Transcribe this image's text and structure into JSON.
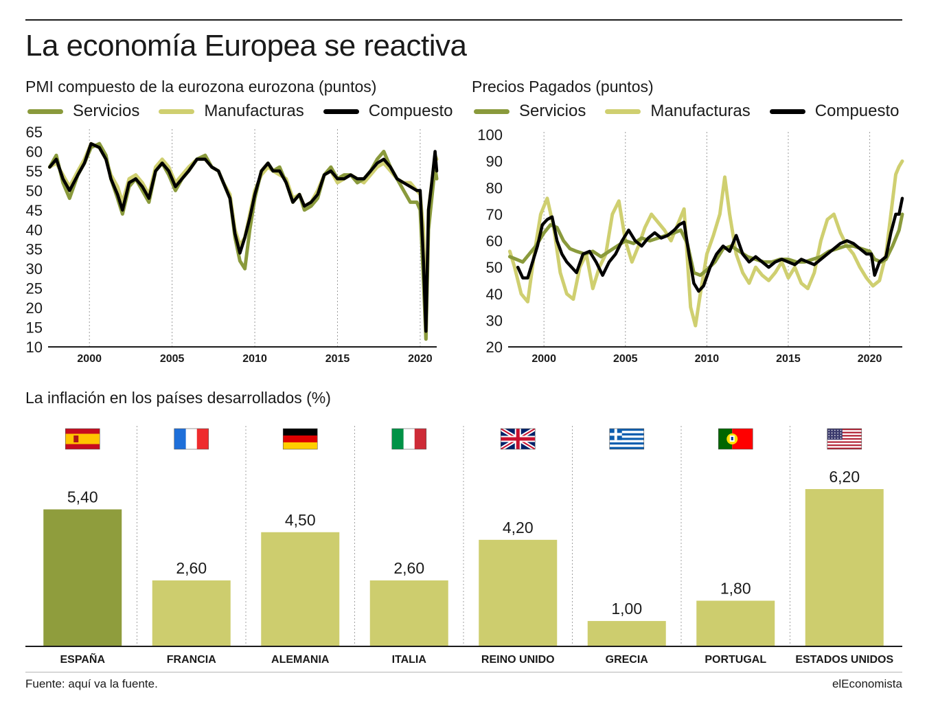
{
  "page": {
    "title": "La economía Europea se reactiva",
    "source": "Fuente: aquí va la fuente.",
    "brand": "elEconomista"
  },
  "colors": {
    "servicios": "#8a9a3c",
    "manufacturas": "#cfcf70",
    "compuesto": "#000000",
    "spain_bar": "#8f9d3d",
    "other_bar": "#cdcd6e"
  },
  "legend": {
    "servicios": "Servicios",
    "manufacturas": "Manufacturas",
    "compuesto": "Compuesto"
  },
  "chart_data": [
    {
      "type": "line",
      "title": "PMI compuesto de la eurozona eurozona (puntos)",
      "xlim": [
        1997.5,
        2021.0
      ],
      "ylim": [
        10,
        65
      ],
      "x_ticks": [
        2000,
        2005,
        2010,
        2015,
        2020
      ],
      "y_ticks": [
        10,
        15,
        20,
        25,
        30,
        35,
        40,
        45,
        50,
        55,
        60,
        65
      ],
      "grid": "vertical",
      "legend_position": "top-left",
      "series": [
        {
          "name": "Servicios",
          "color": "#8a9a3c",
          "x": [
            1997.6,
            1998.0,
            1998.4,
            1998.8,
            1999.3,
            1999.7,
            2000.1,
            2000.6,
            2001.0,
            2001.3,
            2001.7,
            2002.0,
            2002.4,
            2002.8,
            2003.2,
            2003.6,
            2004.0,
            2004.4,
            2004.8,
            2005.2,
            2005.6,
            2006.0,
            2006.5,
            2007.0,
            2007.4,
            2007.8,
            2008.1,
            2008.5,
            2008.8,
            2009.1,
            2009.4,
            2009.7,
            2010.0,
            2010.4,
            2010.8,
            2011.1,
            2011.5,
            2011.9,
            2012.3,
            2012.7,
            2013.0,
            2013.4,
            2013.8,
            2014.2,
            2014.6,
            2015.0,
            2015.4,
            2015.8,
            2016.2,
            2016.6,
            2017.0,
            2017.4,
            2017.8,
            2018.2,
            2018.6,
            2019.0,
            2019.4,
            2019.8,
            2020.0,
            2020.2,
            2020.35,
            2020.5,
            2020.7,
            2020.9,
            2021.0
          ],
          "y": [
            56,
            59,
            52,
            48,
            54,
            57,
            61,
            62,
            59,
            53,
            48,
            44,
            51,
            53,
            50,
            47,
            55,
            57,
            54,
            50,
            53,
            55,
            58,
            59,
            56,
            55,
            52,
            48,
            38,
            32,
            30,
            40,
            48,
            55,
            57,
            55,
            56,
            52,
            47,
            49,
            45,
            46,
            48,
            54,
            56,
            53,
            54,
            54,
            52,
            53,
            55,
            58,
            60,
            56,
            53,
            50,
            47,
            47,
            45,
            27,
            12,
            40,
            48,
            56,
            53
          ]
        },
        {
          "name": "Manufacturas",
          "color": "#cfcf70",
          "x": [
            1997.6,
            1998.0,
            1998.4,
            1998.8,
            1999.3,
            1999.7,
            2000.1,
            2000.6,
            2001.0,
            2001.3,
            2001.7,
            2002.0,
            2002.4,
            2002.8,
            2003.2,
            2003.6,
            2004.0,
            2004.4,
            2004.8,
            2005.2,
            2005.6,
            2006.0,
            2006.5,
            2007.0,
            2007.4,
            2007.8,
            2008.1,
            2008.5,
            2008.8,
            2009.1,
            2009.4,
            2009.7,
            2010.0,
            2010.4,
            2010.8,
            2011.1,
            2011.5,
            2011.9,
            2012.3,
            2012.7,
            2013.0,
            2013.4,
            2013.8,
            2014.2,
            2014.6,
            2015.0,
            2015.4,
            2015.8,
            2016.2,
            2016.6,
            2017.0,
            2017.4,
            2017.8,
            2018.2,
            2018.6,
            2019.0,
            2019.4,
            2019.8,
            2020.0,
            2020.2,
            2020.35,
            2020.5,
            2020.7,
            2020.9,
            2021.0
          ],
          "y": [
            56,
            57,
            54,
            51,
            55,
            58,
            62,
            61,
            58,
            54,
            51,
            47,
            53,
            54,
            52,
            49,
            56,
            58,
            56,
            52,
            54,
            56,
            58,
            58,
            56,
            55,
            52,
            49,
            40,
            36,
            38,
            44,
            50,
            54,
            56,
            55,
            54,
            53,
            48,
            49,
            46,
            47,
            50,
            54,
            55,
            52,
            53,
            54,
            53,
            52,
            54,
            56,
            57,
            55,
            53,
            52,
            52,
            50,
            49,
            40,
            12,
            45,
            52,
            59,
            58
          ]
        },
        {
          "name": "Compuesto",
          "color": "#000000",
          "x": [
            1997.6,
            1998.0,
            1998.4,
            1998.8,
            1999.3,
            1999.7,
            2000.1,
            2000.6,
            2001.0,
            2001.3,
            2001.7,
            2002.0,
            2002.4,
            2002.8,
            2003.2,
            2003.6,
            2004.0,
            2004.4,
            2004.8,
            2005.2,
            2005.6,
            2006.0,
            2006.5,
            2007.0,
            2007.4,
            2007.8,
            2008.1,
            2008.5,
            2008.8,
            2009.1,
            2009.4,
            2009.7,
            2010.0,
            2010.4,
            2010.8,
            2011.1,
            2011.5,
            2011.9,
            2012.3,
            2012.7,
            2013.0,
            2013.4,
            2013.8,
            2014.2,
            2014.6,
            2015.0,
            2015.4,
            2015.8,
            2016.2,
            2016.6,
            2017.0,
            2017.4,
            2017.8,
            2018.2,
            2018.6,
            2019.0,
            2019.4,
            2019.8,
            2020.0,
            2020.2,
            2020.35,
            2020.5,
            2020.7,
            2020.9,
            2021.0
          ],
          "y": [
            56,
            58,
            53,
            50,
            54,
            57,
            62,
            61,
            58,
            53,
            49,
            45,
            52,
            53,
            51,
            48,
            55,
            57,
            55,
            51,
            53,
            55,
            58,
            58,
            56,
            55,
            52,
            48,
            39,
            34,
            38,
            43,
            49,
            55,
            57,
            55,
            55,
            52,
            47,
            49,
            46,
            47,
            49,
            54,
            55,
            53,
            53,
            54,
            53,
            53,
            55,
            57,
            58,
            56,
            53,
            52,
            51,
            50,
            50,
            32,
            14,
            45,
            52,
            60,
            55
          ]
        }
      ]
    },
    {
      "type": "line",
      "title": "Precios Pagados (puntos)",
      "xlim": [
        1997.8,
        2022.0
      ],
      "ylim": [
        20,
        100
      ],
      "x_ticks": [
        2000,
        2005,
        2010,
        2015,
        2020
      ],
      "y_ticks": [
        20,
        30,
        40,
        50,
        60,
        70,
        80,
        90,
        100
      ],
      "grid": "vertical",
      "legend_position": "top-left",
      "series": [
        {
          "name": "Servicios",
          "color": "#8a9a3c",
          "x": [
            1997.9,
            1998.3,
            1998.7,
            1999.1,
            1999.5,
            2000.0,
            2000.4,
            2000.8,
            2001.2,
            2001.6,
            2002.0,
            2002.5,
            2003.0,
            2003.5,
            2004.0,
            2004.5,
            2005.0,
            2005.5,
            2006.0,
            2006.5,
            2007.0,
            2007.5,
            2008.0,
            2008.4,
            2008.8,
            2009.2,
            2009.6,
            2010.0,
            2010.5,
            2011.0,
            2011.5,
            2012.0,
            2012.5,
            2013.0,
            2013.5,
            2014.0,
            2014.5,
            2015.0,
            2015.5,
            2016.0,
            2016.5,
            2017.0,
            2017.5,
            2018.0,
            2018.5,
            2019.0,
            2019.5,
            2020.0,
            2020.3,
            2020.7,
            2021.0,
            2021.4,
            2021.8,
            2022.0
          ],
          "y": [
            54,
            53,
            52,
            55,
            58,
            63,
            66,
            65,
            60,
            57,
            56,
            55,
            56,
            54,
            56,
            58,
            60,
            59,
            61,
            60,
            61,
            62,
            63,
            64,
            59,
            48,
            47,
            49,
            52,
            57,
            58,
            56,
            54,
            53,
            52,
            52,
            53,
            53,
            52,
            52,
            53,
            54,
            56,
            57,
            58,
            58,
            57,
            56,
            53,
            52,
            53,
            58,
            64,
            70
          ]
        },
        {
          "name": "Manufacturas",
          "color": "#cfcf70",
          "x": [
            1997.9,
            1998.2,
            1998.6,
            1999.0,
            1999.4,
            1999.8,
            2000.2,
            2000.6,
            2001.0,
            2001.4,
            2001.8,
            2002.2,
            2002.6,
            2003.0,
            2003.4,
            2003.8,
            2004.2,
            2004.6,
            2005.0,
            2005.4,
            2005.8,
            2006.2,
            2006.6,
            2007.0,
            2007.4,
            2007.8,
            2008.2,
            2008.6,
            2009.0,
            2009.3,
            2009.6,
            2010.0,
            2010.4,
            2010.8,
            2011.1,
            2011.4,
            2011.8,
            2012.2,
            2012.6,
            2013.0,
            2013.4,
            2013.8,
            2014.2,
            2014.6,
            2015.0,
            2015.4,
            2015.8,
            2016.2,
            2016.6,
            2017.0,
            2017.4,
            2017.8,
            2018.2,
            2018.6,
            2019.0,
            2019.4,
            2019.8,
            2020.2,
            2020.6,
            2021.0,
            2021.3,
            2021.6,
            2021.8,
            2022.0
          ],
          "y": [
            56,
            50,
            40,
            37,
            55,
            70,
            76,
            65,
            48,
            40,
            38,
            50,
            55,
            42,
            50,
            55,
            70,
            75,
            60,
            52,
            58,
            65,
            70,
            67,
            64,
            60,
            66,
            72,
            35,
            28,
            40,
            55,
            62,
            70,
            84,
            70,
            55,
            48,
            44,
            50,
            47,
            45,
            48,
            52,
            46,
            50,
            44,
            42,
            48,
            60,
            68,
            70,
            63,
            58,
            55,
            50,
            46,
            43,
            45,
            55,
            70,
            85,
            88,
            90
          ]
        },
        {
          "name": "Compuesto",
          "color": "#000000",
          "x": [
            1998.4,
            1998.7,
            1999.0,
            1999.3,
            1999.6,
            1999.9,
            2000.2,
            2000.5,
            2000.8,
            2001.1,
            2001.4,
            2001.7,
            2002.0,
            2002.4,
            2002.8,
            2003.2,
            2003.6,
            2004.0,
            2004.4,
            2004.8,
            2005.2,
            2005.6,
            2006.0,
            2006.4,
            2006.8,
            2007.2,
            2007.6,
            2008.0,
            2008.3,
            2008.6,
            2008.9,
            2009.2,
            2009.5,
            2009.8,
            2010.2,
            2010.6,
            2011.0,
            2011.4,
            2011.8,
            2012.2,
            2012.6,
            2013.0,
            2013.4,
            2013.8,
            2014.2,
            2014.6,
            2015.0,
            2015.4,
            2015.8,
            2016.2,
            2016.6,
            2017.0,
            2017.4,
            2017.8,
            2018.2,
            2018.6,
            2019.0,
            2019.4,
            2019.8,
            2020.1,
            2020.3,
            2020.6,
            2021.0,
            2021.3,
            2021.6,
            2021.8,
            2022.0
          ],
          "y": [
            50,
            46,
            46,
            52,
            58,
            66,
            68,
            69,
            60,
            55,
            52,
            50,
            48,
            55,
            56,
            52,
            47,
            52,
            55,
            60,
            64,
            60,
            58,
            61,
            63,
            61,
            62,
            64,
            66,
            67,
            55,
            44,
            41,
            43,
            50,
            55,
            58,
            56,
            62,
            55,
            52,
            54,
            52,
            50,
            52,
            53,
            52,
            51,
            53,
            52,
            51,
            53,
            55,
            57,
            59,
            60,
            59,
            57,
            55,
            55,
            47,
            52,
            54,
            63,
            70,
            70,
            76
          ]
        }
      ]
    },
    {
      "type": "bar",
      "title": "La inflación en los países desarrollados (%)",
      "categories": [
        "ESPAÑA",
        "FRANCIA",
        "ALEMANIA",
        "ITALIA",
        "REINO UNIDO",
        "GRECIA",
        "PORTUGAL",
        "ESTADOS UNIDOS"
      ],
      "values": [
        5.4,
        2.6,
        4.5,
        2.6,
        4.2,
        1.0,
        1.8,
        6.2
      ],
      "value_labels": [
        "5,40",
        "2,60",
        "4,50",
        "2,60",
        "4,20",
        "1,00",
        "1,80",
        "6,20"
      ],
      "flags": [
        "spain-flag-icon",
        "france-flag-icon",
        "germany-flag-icon",
        "italy-flag-icon",
        "uk-flag-icon",
        "greece-flag-icon",
        "portugal-flag-icon",
        "usa-flag-icon"
      ],
      "ylim": [
        0,
        6.2
      ],
      "grid": "vertical-separators"
    }
  ]
}
